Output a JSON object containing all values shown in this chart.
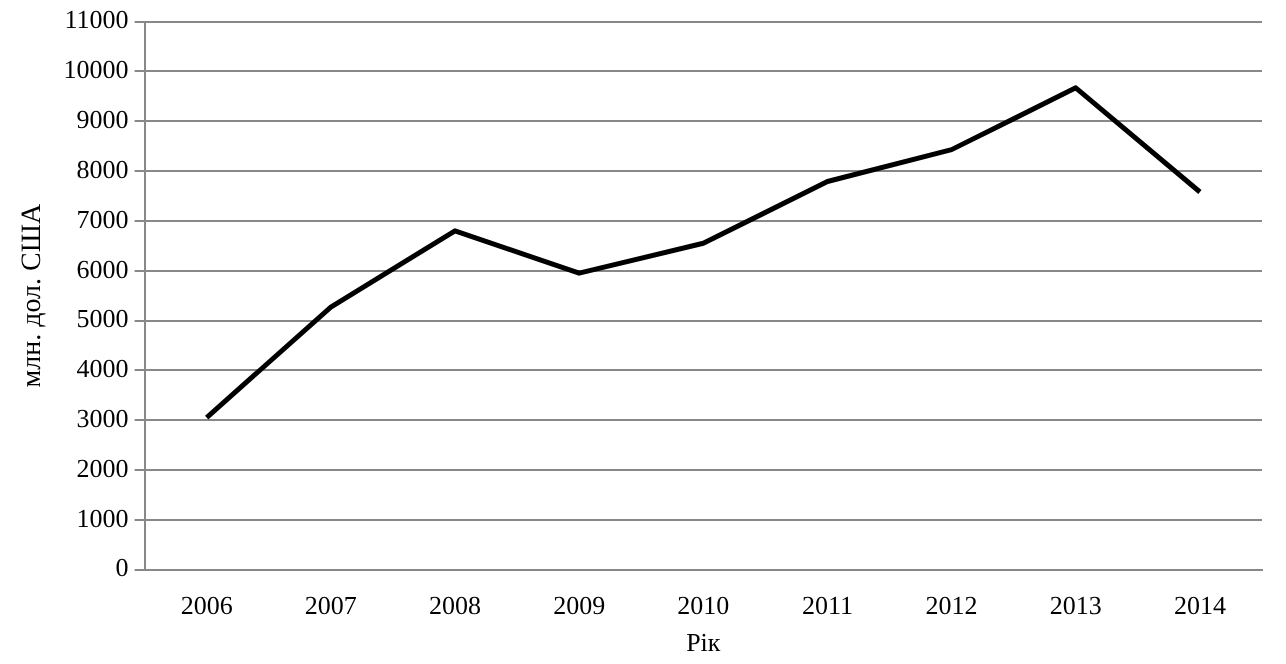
{
  "chart_data": {
    "type": "line",
    "xlabel": "Рік",
    "ylabel": "млн. дол. США",
    "categories": [
      "2006",
      "2007",
      "2008",
      "2009",
      "2010",
      "2011",
      "2012",
      "2013",
      "2014"
    ],
    "series": [
      {
        "color": "#000000",
        "values": [
          3050,
          5270,
          6800,
          5950,
          6550,
          7790,
          8430,
          9670,
          7580
        ]
      }
    ],
    "ylim": [
      0,
      11000
    ],
    "yticks": [
      0,
      1000,
      2000,
      3000,
      4000,
      5000,
      6000,
      7000,
      8000,
      9000,
      10000,
      11000
    ],
    "grid": "y",
    "legend": false,
    "marker": "none",
    "line_style": "solid"
  }
}
